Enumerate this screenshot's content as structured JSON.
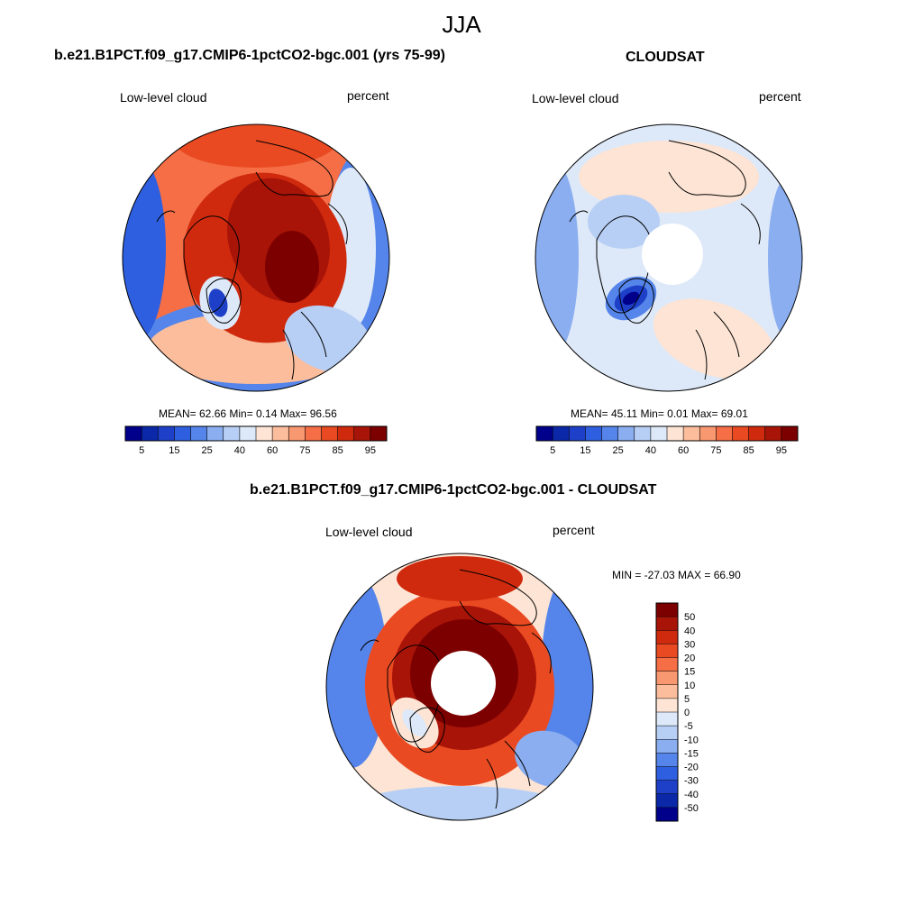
{
  "figure_title": "JJA",
  "panels": [
    {
      "title": "b.e21.B1PCT.f09_g17.CMIP6-1pctCO2-bgc.001 (yrs 75-99)",
      "left_label": "Low-level cloud",
      "right_label": "percent",
      "stats": "MEAN=  62.66  Min=   0.14  Max=  96.56",
      "hole": false
    },
    {
      "title": "CLOUDSAT",
      "left_label": "Low-level cloud",
      "right_label": "percent",
      "stats": "MEAN=  45.11  Min=   0.01  Max=  69.01",
      "hole": true
    },
    {
      "title": "b.e21.B1PCT.f09_g17.CMIP6-1pctCO2-bgc.001 - CLOUDSAT",
      "left_label": "Low-level cloud",
      "right_label": "percent",
      "stats": "MIN = -27.03 MAX =  66.90",
      "hole": true
    }
  ],
  "colorbar_horizontal": {
    "colors": [
      "#00008b",
      "#0a28a8",
      "#1e40c8",
      "#2e5fe0",
      "#5585ea",
      "#8aaef0",
      "#b8cff5",
      "#dde8f8",
      "#fde4d4",
      "#fbbd9c",
      "#f89870",
      "#f56e46",
      "#ea4a22",
      "#cf2a0e",
      "#a81408",
      "#7d0000"
    ],
    "tick_labels": [
      "5",
      "15",
      "25",
      "40",
      "60",
      "75",
      "85",
      "95"
    ]
  },
  "colorbar_vertical": {
    "colors": [
      "#7d0000",
      "#a81408",
      "#cf2a0e",
      "#ea4a22",
      "#f56e46",
      "#f89870",
      "#fbbd9c",
      "#fde4d4",
      "#dde8f8",
      "#b8cff5",
      "#8aaef0",
      "#5585ea",
      "#2e5fe0",
      "#1e40c8",
      "#0a28a8",
      "#00008b"
    ],
    "tick_labels": [
      "50",
      "40",
      "30",
      "20",
      "15",
      "10",
      "5",
      "0",
      "-5",
      "-10",
      "-15",
      "-20",
      "-30",
      "-40",
      "-50"
    ]
  }
}
